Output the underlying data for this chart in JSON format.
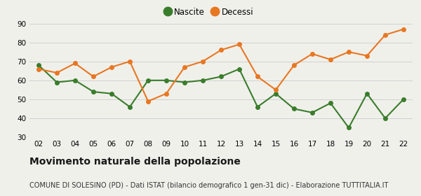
{
  "years": [
    "02",
    "03",
    "04",
    "05",
    "06",
    "07",
    "08",
    "09",
    "10",
    "11",
    "12",
    "13",
    "14",
    "15",
    "16",
    "17",
    "18",
    "19",
    "20",
    "21",
    "22"
  ],
  "nascite": [
    68,
    59,
    60,
    54,
    53,
    46,
    60,
    60,
    59,
    60,
    62,
    66,
    46,
    53,
    45,
    43,
    48,
    35,
    53,
    40,
    50
  ],
  "decessi": [
    66,
    64,
    69,
    62,
    67,
    70,
    49,
    53,
    67,
    70,
    76,
    79,
    62,
    55,
    68,
    74,
    71,
    75,
    73,
    84,
    87
  ],
  "nascite_color": "#3a7d2c",
  "decessi_color": "#e87722",
  "bg_color": "#f0f0eb",
  "grid_color": "#d0d0d0",
  "ylim": [
    30,
    90
  ],
  "yticks": [
    30,
    40,
    50,
    60,
    70,
    80,
    90
  ],
  "title": "Movimento naturale della popolazione",
  "subtitle": "COMUNE DI SOLESINO (PD) - Dati ISTAT (bilancio demografico 1 gen-31 dic) - Elaborazione TUTTITALIA.IT",
  "legend_nascite": "Nascite",
  "legend_decessi": "Decessi",
  "title_fontsize": 10,
  "subtitle_fontsize": 7,
  "marker_size": 4,
  "line_width": 1.5
}
